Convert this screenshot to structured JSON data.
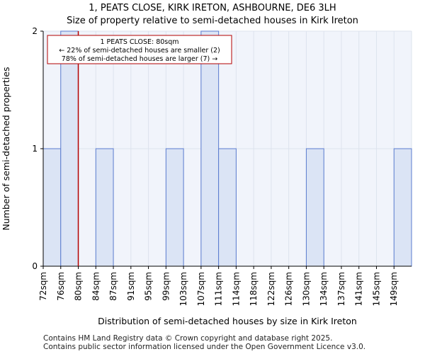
{
  "title": {
    "line1": "1, PEATS CLOSE, KIRK IRETON, ASHBOURNE, DE6 3LH",
    "line2": "Size of property relative to semi-detached houses in Kirk Ireton"
  },
  "footer": {
    "line1": "Contains HM Land Registry data © Crown copyright and database right 2025.",
    "line2": "Contains public sector information licensed under the Open Government Licence v3.0."
  },
  "colors": {
    "bar_fill": "#dbe4f5",
    "bar_stroke": "#5b7ccf",
    "marker": "#b30000",
    "grid": "#dde3ee",
    "plot_bg": "#f1f4fb"
  },
  "chart_data": {
    "type": "bar",
    "title": "Size of property relative to semi-detached houses in Kirk Ireton",
    "xlabel": "Distribution of semi-detached houses by size in Kirk Ireton",
    "ylabel": "Number of semi-detached properties",
    "categories": [
      "72sqm",
      "76sqm",
      "80sqm",
      "84sqm",
      "87sqm",
      "91sqm",
      "95sqm",
      "99sqm",
      "103sqm",
      "107sqm",
      "111sqm",
      "114sqm",
      "118sqm",
      "122sqm",
      "126sqm",
      "130sqm",
      "134sqm",
      "137sqm",
      "141sqm",
      "145sqm",
      "149sqm"
    ],
    "values": [
      1,
      2,
      0,
      1,
      0,
      0,
      0,
      1,
      0,
      2,
      1,
      0,
      0,
      0,
      0,
      1,
      0,
      0,
      0,
      0,
      1
    ],
    "ylim": [
      0,
      2
    ],
    "yticks": [
      0,
      1,
      2
    ],
    "grid": true,
    "marker": {
      "value_sqm": 80,
      "position_index": 2.0,
      "label_line1": "1 PEATS CLOSE: 80sqm",
      "label_line2": "← 22% of semi-detached houses are smaller (2)",
      "label_line3": "78% of semi-detached houses are larger (7) →"
    }
  }
}
